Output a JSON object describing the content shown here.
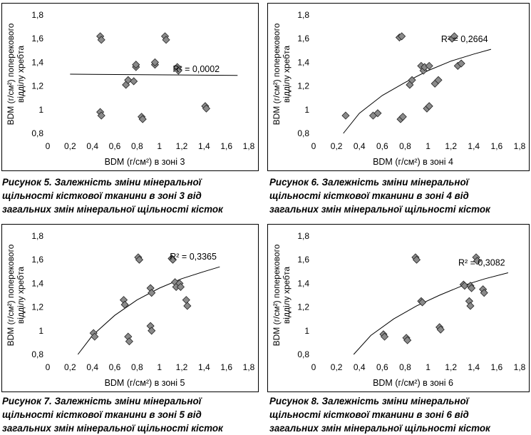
{
  "figures": [
    {
      "caption_number": "Рисунок 5.",
      "caption_lines": [
        "Залежність зміни мінеральної",
        "щільності кісткової тканини в зоні 3 від",
        "загальних змін мінеральної щільності кісток"
      ],
      "chart_data": {
        "type": "scatter",
        "xlabel": "BDM (г/см²) в зоні 3",
        "ylabel_lines": [
          "BDM (г/см²) поперекового",
          "відділу хребта"
        ],
        "x_ticks": [
          "0",
          "0,2",
          "0,4",
          "0,6",
          "0,8",
          "1",
          "1,2",
          "1,4",
          "1,6",
          "1,8"
        ],
        "y_ticks": [
          "0,8",
          "1",
          "1,2",
          "1,4",
          "1,6",
          "1,8"
        ],
        "xlim": [
          0,
          1.8
        ],
        "ylim": [
          0.8,
          1.8
        ],
        "r2_label": "R² = 0,0002",
        "points": [
          [
            0.47,
            1.62
          ],
          [
            0.48,
            1.59
          ],
          [
            0.47,
            0.98
          ],
          [
            0.48,
            0.95
          ],
          [
            0.7,
            1.21
          ],
          [
            0.72,
            1.25
          ],
          [
            0.77,
            1.24
          ],
          [
            0.79,
            1.36
          ],
          [
            0.79,
            1.38
          ],
          [
            0.84,
            0.94
          ],
          [
            0.85,
            0.92
          ],
          [
            0.96,
            1.38
          ],
          [
            0.96,
            1.4
          ],
          [
            1.05,
            1.62
          ],
          [
            1.06,
            1.59
          ],
          [
            1.16,
            1.36
          ],
          [
            1.17,
            1.33
          ],
          [
            1.41,
            1.03
          ],
          [
            1.42,
            1.01
          ]
        ],
        "trendline": [
          [
            0.2,
            1.3
          ],
          [
            1.7,
            1.29
          ]
        ]
      }
    },
    {
      "caption_number": "Рисунок 6.",
      "caption_lines": [
        "Залежність зміни мінеральної",
        "щільності кісткової тканини в зоні 4 від",
        "загальних змін мінеральної щільності кісток"
      ],
      "chart_data": {
        "type": "scatter",
        "xlabel": "BDM (г/см²) в зоні 4",
        "ylabel_lines": [
          "BDM (г/см²) поперекового",
          "відділу хребта"
        ],
        "x_ticks": [
          "0",
          "0,2",
          "0,4",
          "0,6",
          "0,8",
          "1",
          "1,2",
          "1,4",
          "1,6",
          "1,8"
        ],
        "y_ticks": [
          "0,8",
          "1",
          "1,2",
          "1,4",
          "1,6",
          "1,8"
        ],
        "xlim": [
          0,
          1.8
        ],
        "ylim": [
          0.8,
          1.8
        ],
        "r2_label": "R² = 0,2664",
        "points": [
          [
            0.28,
            0.95
          ],
          [
            0.52,
            0.95
          ],
          [
            0.56,
            0.97
          ],
          [
            0.75,
            1.61
          ],
          [
            0.77,
            1.62
          ],
          [
            0.76,
            0.92
          ],
          [
            0.78,
            0.94
          ],
          [
            0.84,
            1.21
          ],
          [
            0.86,
            1.25
          ],
          [
            0.94,
            1.37
          ],
          [
            0.96,
            1.33
          ],
          [
            0.97,
            1.36
          ],
          [
            0.99,
            1.01
          ],
          [
            1.01,
            1.03
          ],
          [
            1.01,
            1.37
          ],
          [
            1.06,
            1.22
          ],
          [
            1.09,
            1.25
          ],
          [
            1.21,
            1.6
          ],
          [
            1.23,
            1.62
          ],
          [
            1.26,
            1.37
          ],
          [
            1.29,
            1.39
          ]
        ],
        "trendline": [
          [
            0.26,
            0.8
          ],
          [
            0.4,
            0.97
          ],
          [
            0.6,
            1.12
          ],
          [
            0.8,
            1.23
          ],
          [
            1.0,
            1.33
          ],
          [
            1.2,
            1.41
          ],
          [
            1.4,
            1.47
          ],
          [
            1.55,
            1.51
          ]
        ]
      }
    },
    {
      "caption_number": "Рисунок 7.",
      "caption_lines": [
        "Залежність зміни мінеральної",
        "щільності кісткової тканини в зоні 5 від",
        "загальних змін мінеральної щільності кісток"
      ],
      "chart_data": {
        "type": "scatter",
        "xlabel": "BDM (г/см²) в зоні 5",
        "ylabel_lines": [
          "BDM (г/см²) поперекового",
          "відділу хребта"
        ],
        "x_ticks": [
          "0",
          "0,2",
          "0,4",
          "0,6",
          "0,8",
          "1",
          "1,2",
          "1,4",
          "1,6",
          "1,8"
        ],
        "y_ticks": [
          "0,8",
          "1",
          "1,2",
          "1,4",
          "1,6",
          "1,8"
        ],
        "xlim": [
          0,
          1.8
        ],
        "ylim": [
          0.8,
          1.8
        ],
        "r2_label": "R² = 0,3365",
        "points": [
          [
            0.41,
            0.98
          ],
          [
            0.42,
            0.95
          ],
          [
            0.68,
            1.26
          ],
          [
            0.69,
            1.22
          ],
          [
            0.72,
            0.95
          ],
          [
            0.73,
            0.91
          ],
          [
            0.81,
            1.62
          ],
          [
            0.82,
            1.6
          ],
          [
            0.92,
            1.36
          ],
          [
            0.93,
            1.32
          ],
          [
            0.92,
            1.04
          ],
          [
            0.93,
            1.0
          ],
          [
            1.11,
            1.61
          ],
          [
            1.12,
            1.6
          ],
          [
            1.14,
            1.41
          ],
          [
            1.15,
            1.37
          ],
          [
            1.18,
            1.4
          ],
          [
            1.19,
            1.37
          ],
          [
            1.24,
            1.26
          ],
          [
            1.25,
            1.21
          ]
        ],
        "trendline": [
          [
            0.27,
            0.8
          ],
          [
            0.4,
            0.96
          ],
          [
            0.6,
            1.13
          ],
          [
            0.8,
            1.26
          ],
          [
            1.0,
            1.36
          ],
          [
            1.2,
            1.44
          ],
          [
            1.4,
            1.5
          ],
          [
            1.54,
            1.54
          ]
        ]
      }
    },
    {
      "caption_number": "Рисунок 8.",
      "caption_lines": [
        "Залежність зміни мінеральної",
        "щільності кісткової тканини в зоні 6 від",
        "загальних змін мінеральної щільності кісток"
      ],
      "chart_data": {
        "type": "scatter",
        "xlabel": "BDM (г/см²) в зоні 6",
        "ylabel_lines": [
          "BDM (г/см²) поперекового",
          "відділу хребта"
        ],
        "x_ticks": [
          "0",
          "0,2",
          "0,4",
          "0,6",
          "0,8",
          "1",
          "1,2",
          "1,4",
          "1,6",
          "1,8"
        ],
        "y_ticks": [
          "0,8",
          "1",
          "1,2",
          "1,4",
          "1,6",
          "1,8"
        ],
        "xlim": [
          0,
          1.8
        ],
        "ylim": [
          0.8,
          1.8
        ],
        "r2_label": "R² = 0,3082",
        "points": [
          [
            0.61,
            0.97
          ],
          [
            0.62,
            0.95
          ],
          [
            0.81,
            0.94
          ],
          [
            0.82,
            0.92
          ],
          [
            0.89,
            1.62
          ],
          [
            0.9,
            1.6
          ],
          [
            0.94,
            1.25
          ],
          [
            0.95,
            1.24
          ],
          [
            1.1,
            1.03
          ],
          [
            1.11,
            1.01
          ],
          [
            1.31,
            1.39
          ],
          [
            1.32,
            1.38
          ],
          [
            1.36,
            1.25
          ],
          [
            1.37,
            1.21
          ],
          [
            1.37,
            1.38
          ],
          [
            1.38,
            1.36
          ],
          [
            1.42,
            1.62
          ],
          [
            1.43,
            1.59
          ],
          [
            1.48,
            1.35
          ],
          [
            1.49,
            1.32
          ]
        ],
        "trendline": [
          [
            0.35,
            0.8
          ],
          [
            0.5,
            0.96
          ],
          [
            0.7,
            1.1
          ],
          [
            0.9,
            1.21
          ],
          [
            1.1,
            1.3
          ],
          [
            1.3,
            1.38
          ],
          [
            1.5,
            1.44
          ],
          [
            1.7,
            1.49
          ]
        ]
      }
    }
  ]
}
